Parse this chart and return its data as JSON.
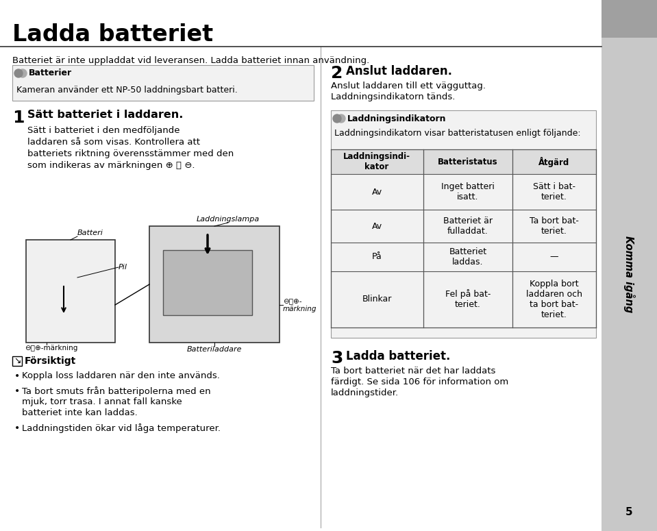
{
  "bg_color": "#e8e8e8",
  "page_bg": "#ffffff",
  "title": "Ladda batteriet",
  "subtitle": "Batteriet är inte uppladdat vid leveransen. Ladda batteriet innan användning.",
  "section1_heading": "Sätt batteriet i laddaren.",
  "section1_text": "Sätt i batteriet i den medföljande laddaren så som visas. Kontrollera att batteriets riktning överensstämmer med den som indikeras av märkningen ⊕ Ⓣ ⊖.",
  "batterier_heading": "Batterier",
  "batterier_text": "Kameran använder ett NP-50 laddningsbart batteri.",
  "forsiktigt_heading": "Försiktigt",
  "forsiktigt_items": [
    "Koppla loss laddaren när den inte används.",
    "Ta bort smuts från batteripolerna med en mjuk, torr trasa. I annat fall kanske batteriet inte kan laddas.",
    "Laddningstiden ökar vid låga temperaturer."
  ],
  "section2_heading": "Anslut laddaren.",
  "section2_text": "Anslut laddaren till ett vägguttag. Laddningsindikatorn tänds.",
  "laddnings_heading": "Laddningsindikatorn",
  "laddnings_desc": "Laddningsindikatorn visar batteristatusen enligt följande:",
  "table_col1": "Laddningsindi-\nkator",
  "table_col2": "Batteristatus",
  "table_col3": "Åtgärd",
  "table_rows": [
    [
      "Av",
      "Inget batteri\nisatt.",
      "Sätt i bat-\nteriet."
    ],
    [
      "Av",
      "Batteriet är\nfulladdat.",
      "Ta bort bat-\nteriet."
    ],
    [
      "På",
      "Batteriet\nladdas.",
      "—"
    ],
    [
      "Blinkar",
      "Fel på bat-\nteriet.",
      "Koppla bort\nladdaren och\nta bort bat-\nteriet."
    ]
  ],
  "section3_heading": "Ladda batteriet.",
  "section3_text": "Ta bort batteriet när det har laddats färdigt. Se sida 106 för information om laddningstider.",
  "side_label": "Komma igång",
  "page_number": "5",
  "diagram_labels": {
    "batteri": "Batteri",
    "pil": "Pil",
    "laddningslampa": "Laddningslampa",
    "batteriladdare": "Batteriladdare",
    "dfc_left": "⊖Ⓣ⊕-märkning",
    "dfc_right": "⊖Ⓣ⊕-\nmärkning"
  }
}
